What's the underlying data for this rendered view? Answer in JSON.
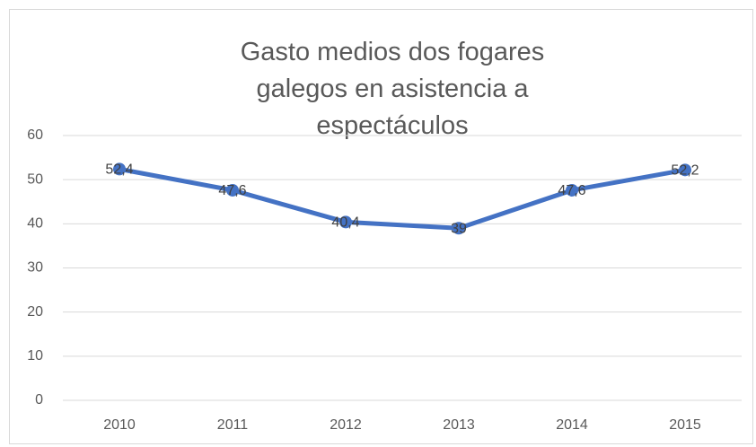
{
  "chart_data": {
    "type": "line",
    "title": "Gasto medios dos fogares galegos en asistencia a espectáculos",
    "categories": [
      "2010",
      "2011",
      "2012",
      "2013",
      "2014",
      "2015"
    ],
    "series": [
      {
        "color": "#4472c4",
        "values": [
          52.4,
          47.6,
          40.4,
          39,
          47.6,
          52.2
        ],
        "value_labels": [
          "52,4",
          "47,6",
          "40,4",
          "39",
          "47,6",
          "52,2"
        ]
      }
    ],
    "ylim": [
      0,
      60
    ],
    "yticks": [
      0,
      10,
      20,
      30,
      40,
      50,
      60
    ],
    "grid": true
  }
}
